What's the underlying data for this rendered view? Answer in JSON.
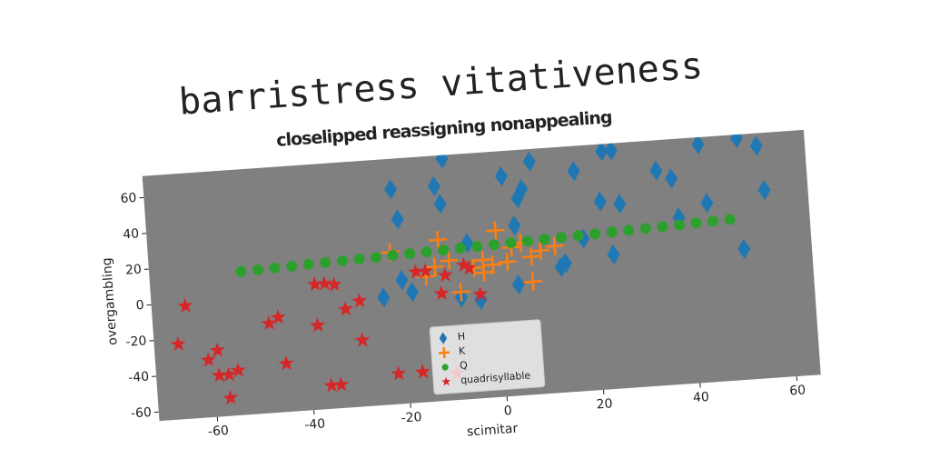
{
  "chart_data": {
    "type": "scatter",
    "title": "barristress vitativeness",
    "subtitle": "closelipped reassigning nonappealing",
    "xlabel": "scimitar",
    "ylabel": "overgambling",
    "xlim": [
      -72,
      65
    ],
    "ylim": [
      -65,
      72
    ],
    "xticks": [
      -60,
      -40,
      -20,
      0,
      20,
      40,
      60
    ],
    "yticks": [
      -60,
      -40,
      -20,
      0,
      20,
      40,
      60
    ],
    "legend": "lower center",
    "series": [
      {
        "name": "H",
        "color": "#1f77b4",
        "marker": "diamond",
        "x": [
          -21,
          -20,
          -20,
          -24,
          -12,
          -11,
          -10,
          -8,
          2,
          5,
          6,
          8,
          4,
          17,
          18,
          22,
          23,
          25,
          24,
          26,
          34,
          37,
          38,
          43,
          44,
          51,
          51,
          55,
          56,
          13,
          14,
          4,
          -4,
          -6,
          -18
        ],
        "y": [
          55,
          38,
          4,
          -5,
          55,
          45,
          70,
          -8,
          58,
          45,
          50,
          65,
          30,
          58,
          20,
          40,
          68,
          68,
          10,
          38,
          55,
          50,
          28,
          68,
          35,
          70,
          8,
          65,
          40,
          5,
          7,
          -3,
          -10,
          22,
          -3
        ]
      },
      {
        "name": "K",
        "color": "#ff7f0e",
        "marker": "plus",
        "x": [
          -22,
          -12,
          -13,
          -8,
          -5,
          -3,
          0,
          2,
          5,
          7,
          9,
          -10,
          -3,
          3,
          -15,
          7,
          -1,
          12
        ],
        "y": [
          20,
          25,
          10,
          -5,
          8,
          12,
          28,
          10,
          20,
          12,
          15,
          13,
          5,
          18,
          5,
          -2,
          9,
          17
        ]
      },
      {
        "name": "Q",
        "color": "#2ca02c",
        "marker": "circle",
        "x": [
          -53,
          -49.5,
          -46,
          -42.5,
          -39,
          -35.5,
          -32,
          -28.5,
          -25,
          -21.5,
          -18,
          -14.5,
          -11,
          -7.5,
          -4,
          -0.5,
          3,
          6.5,
          10,
          13.5,
          17,
          20.5,
          24,
          27.5,
          31,
          34.5,
          38,
          41.5,
          45,
          48.5
        ],
        "y": [
          15,
          15.3,
          15.7,
          16,
          16.4,
          16.7,
          17,
          17.4,
          17.7,
          18.1,
          18.4,
          18.8,
          19.1,
          19.5,
          19.8,
          20.1,
          20.5,
          20.8,
          21.2,
          21.5,
          21.9,
          22.2,
          22.6,
          22.9,
          23.2,
          23.6,
          23.9,
          24.3,
          24.6,
          25
        ]
      },
      {
        "name": "quadrisyllable",
        "color": "#d62728",
        "marker": "star",
        "x": [
          -65,
          -67,
          -61,
          -59,
          -59,
          -57,
          -57,
          -55,
          -48,
          -46,
          -45,
          -38,
          -38,
          -36,
          -34,
          -36,
          -34,
          -32,
          -29,
          -29,
          -22,
          -17,
          -17,
          -15,
          -12,
          -11,
          -7,
          -6,
          -4,
          -10
        ],
        "y": [
          -2,
          -23,
          -33,
          -28,
          -42,
          -42,
          -55,
          -40,
          -15,
          -12,
          -38,
          -18,
          5,
          5,
          4,
          -52,
          -52,
          -10,
          -6,
          -28,
          -48,
          -48,
          8,
          8,
          -5,
          5,
          10,
          8,
          -7,
          -50
        ]
      }
    ]
  }
}
